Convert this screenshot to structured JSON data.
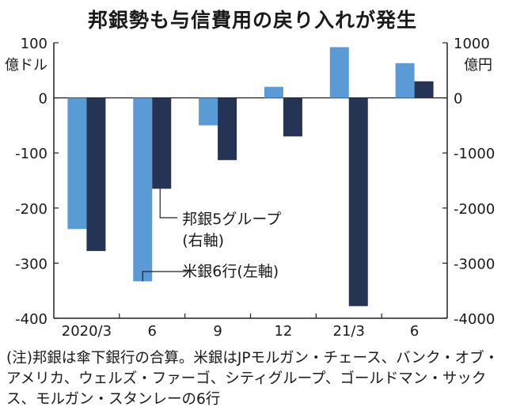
{
  "title": "邦銀勢も与信費用の戻り入れが発生",
  "note": "(注)邦銀は傘下銀行の合算。米銀はJPモルガン・チェース、バンク・オブ・アメリカ、ウェルズ・ファーゴ、シティグループ、ゴールドマン・サックス、モルガン・スタンレーの6行",
  "colors": {
    "us": "#5b9bd5",
    "jp": "#253354",
    "axis": "#222222"
  },
  "chart_data": {
    "type": "bar",
    "title": "邦銀勢も与信費用の戻り入れが発生",
    "categories": [
      "2020/3",
      "6",
      "9",
      "12",
      "21/3",
      "6"
    ],
    "left_axis": {
      "unit": "億ドル",
      "ticks": [
        "100",
        "0",
        "-100",
        "-200",
        "-300",
        "-400"
      ],
      "range": [
        -400,
        100
      ]
    },
    "right_axis": {
      "unit": "億円",
      "ticks": [
        "1000",
        "0",
        "-1000",
        "-2000",
        "-3000",
        "-4000"
      ],
      "range": [
        -4000,
        1000
      ]
    },
    "series": [
      {
        "name": "米銀6行(左軸)",
        "axis": "left",
        "values": [
          -238,
          -333,
          -50,
          20,
          92,
          63
        ]
      },
      {
        "name": "邦銀5グループ(右軸)",
        "axis": "right",
        "values": [
          -2780,
          -1650,
          -1130,
          -700,
          -3780,
          300
        ]
      }
    ],
    "annotations": [
      {
        "series": "邦銀5グループ",
        "lines": [
          "邦銀5グループ",
          "(右軸)"
        ]
      },
      {
        "series": "米銀6行",
        "lines": [
          "米銀6行(左軸)"
        ]
      }
    ]
  }
}
